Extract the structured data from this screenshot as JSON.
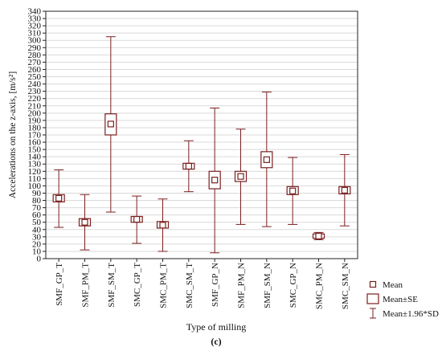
{
  "figure_label": "(c)",
  "colors": {
    "series": "#7a1f1f",
    "grid": "#d9d9d9",
    "axis": "#222222"
  },
  "chart_data": {
    "type": "box",
    "xlabel": "Type of milling",
    "ylabel": "Accelerations on the z-axis, [m/s²]",
    "ylim": [
      0,
      340
    ],
    "yticks": [
      0,
      10,
      20,
      30,
      40,
      50,
      60,
      70,
      80,
      90,
      100,
      110,
      120,
      130,
      140,
      150,
      160,
      170,
      180,
      190,
      200,
      210,
      220,
      230,
      240,
      250,
      260,
      270,
      280,
      290,
      300,
      310,
      320,
      330,
      340
    ],
    "grid": true,
    "legend_position": "bottom-right",
    "legend": [
      {
        "marker": "mean",
        "label": "Mean"
      },
      {
        "marker": "box",
        "label": "Mean±SE"
      },
      {
        "marker": "whisker",
        "label": "Mean±1.96*SD"
      }
    ],
    "categories": [
      "SMF_GP_T",
      "SMF_PM_T",
      "SMF_SM_T",
      "SMC_GP_T",
      "SMC_PM_T",
      "SMC_SM_T",
      "SMF_GP_N",
      "SMF_PM_N",
      "SMF_SM_N",
      "SMC_GP_N",
      "SMC_PM_N",
      "SMC_SM_N"
    ],
    "mean": [
      83,
      50,
      185,
      54,
      46,
      127,
      108,
      113,
      136,
      93,
      31,
      94
    ],
    "se_low": [
      78,
      45,
      170,
      50,
      42,
      123,
      96,
      106,
      125,
      88,
      28,
      89
    ],
    "se_high": [
      88,
      55,
      199,
      58,
      51,
      131,
      120,
      120,
      147,
      99,
      34,
      99
    ],
    "sd_low": [
      43,
      12,
      64,
      21,
      10,
      92,
      8,
      47,
      44,
      47,
      26,
      45
    ],
    "sd_high": [
      122,
      88,
      305,
      86,
      82,
      162,
      207,
      178,
      229,
      139,
      36,
      143
    ]
  }
}
